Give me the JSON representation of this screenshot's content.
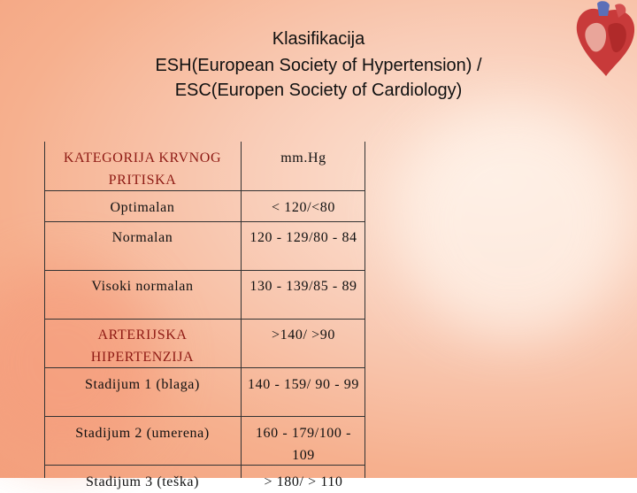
{
  "title": {
    "lines": [
      "Klasifikacija",
      "ESH(European Society of Hypertension) /",
      "ESC(Europen Society of Cardiology)"
    ]
  },
  "table": {
    "header": [
      "KATEGORIJA KRVNOG PRITISKA",
      "mm.Hg"
    ],
    "rows": [
      [
        "Optimalan",
        "< 120/<80"
      ],
      [
        "Normalan",
        "120 - 129/80 - 84"
      ],
      [
        "Visoki normalan",
        "130 - 139/85 - 89"
      ],
      [
        "ARTERIJSKA HIPERTENZIJA",
        ">140/ >90"
      ],
      [
        "Stadijum 1 (blaga)",
        "140 - 159/ 90 - 99"
      ],
      [
        "Stadijum 2 (umerena)",
        "160 - 179/100 - 109"
      ],
      [
        "Stadijum 3 (teška)",
        "> 180/ > 110"
      ]
    ]
  }
}
